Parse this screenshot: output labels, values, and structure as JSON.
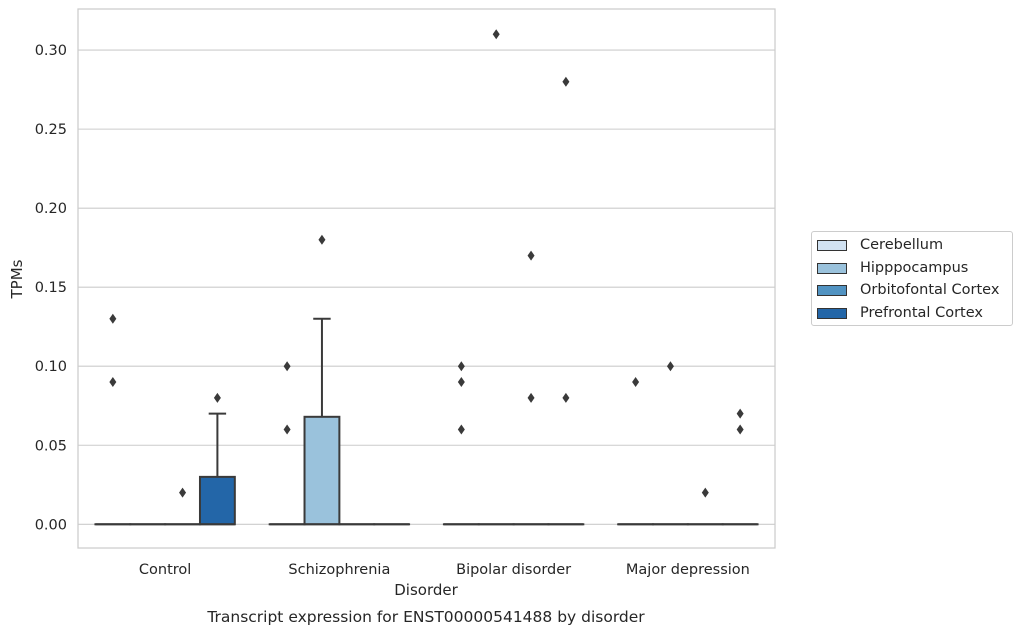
{
  "chart_data": {
    "type": "box",
    "title": "Transcript expression for ENST00000541488 by disorder",
    "xlabel": "Disorder",
    "ylabel": "TPMs",
    "ylim": [
      -0.015,
      0.326
    ],
    "yticks": [
      0.0,
      0.05,
      0.1,
      0.15,
      0.2,
      0.25,
      0.3
    ],
    "ytick_labels": [
      "0.00",
      "0.05",
      "0.10",
      "0.15",
      "0.20",
      "0.25",
      "0.30"
    ],
    "categories": [
      "Control",
      "Schizophrenia",
      "Bipolar disorder",
      "Major depression"
    ],
    "grid": "horizontal",
    "legend_position": "right",
    "series": [
      {
        "name": "Cerebellum",
        "color": "#d1e2f2",
        "boxes": [
          {
            "q1": 0,
            "median": 0,
            "q3": 0,
            "whisker_low": 0,
            "whisker_high": 0,
            "outliers": [
              0.09,
              0.13
            ]
          },
          {
            "q1": 0,
            "median": 0,
            "q3": 0,
            "whisker_low": 0,
            "whisker_high": 0,
            "outliers": [
              0.06,
              0.1
            ]
          },
          {
            "q1": 0,
            "median": 0,
            "q3": 0,
            "whisker_low": 0,
            "whisker_high": 0,
            "outliers": [
              0.06,
              0.09,
              0.1
            ]
          },
          {
            "q1": 0,
            "median": 0,
            "q3": 0,
            "whisker_low": 0,
            "whisker_high": 0,
            "outliers": [
              0.09
            ]
          }
        ]
      },
      {
        "name": "Hipppocampus",
        "color": "#9ac2dc",
        "boxes": [
          {
            "q1": 0,
            "median": 0,
            "q3": 0,
            "whisker_low": 0,
            "whisker_high": 0,
            "outliers": []
          },
          {
            "q1": 0,
            "median": 0,
            "q3": 0.068,
            "whisker_low": 0,
            "whisker_high": 0.13,
            "outliers": [
              0.18
            ]
          },
          {
            "q1": 0,
            "median": 0,
            "q3": 0,
            "whisker_low": 0,
            "whisker_high": 0,
            "outliers": [
              0.31
            ]
          },
          {
            "q1": 0,
            "median": 0,
            "q3": 0,
            "whisker_low": 0,
            "whisker_high": 0,
            "outliers": [
              0.1
            ]
          }
        ]
      },
      {
        "name": "Orbitofontal Cortex",
        "color": "#5193c2",
        "boxes": [
          {
            "q1": 0,
            "median": 0,
            "q3": 0,
            "whisker_low": 0,
            "whisker_high": 0,
            "outliers": [
              0.02
            ]
          },
          {
            "q1": 0,
            "median": 0,
            "q3": 0,
            "whisker_low": 0,
            "whisker_high": 0,
            "outliers": []
          },
          {
            "q1": 0,
            "median": 0,
            "q3": 0,
            "whisker_low": 0,
            "whisker_high": 0,
            "outliers": [
              0.08,
              0.17
            ]
          },
          {
            "q1": 0,
            "median": 0,
            "q3": 0,
            "whisker_low": 0,
            "whisker_high": 0,
            "outliers": [
              0.02
            ]
          }
        ]
      },
      {
        "name": "Prefrontal Cortex",
        "color": "#2366a8",
        "boxes": [
          {
            "q1": 0,
            "median": 0,
            "q3": 0.03,
            "whisker_low": 0,
            "whisker_high": 0.07,
            "outliers": [
              0.08
            ]
          },
          {
            "q1": 0,
            "median": 0,
            "q3": 0,
            "whisker_low": 0,
            "whisker_high": 0,
            "outliers": []
          },
          {
            "q1": 0,
            "median": 0,
            "q3": 0,
            "whisker_low": 0,
            "whisker_high": 0,
            "outliers": [
              0.08,
              0.28
            ]
          },
          {
            "q1": 0,
            "median": 0,
            "q3": 0,
            "whisker_low": 0,
            "whisker_high": 0,
            "outliers": [
              0.06,
              0.07
            ]
          }
        ]
      }
    ]
  }
}
